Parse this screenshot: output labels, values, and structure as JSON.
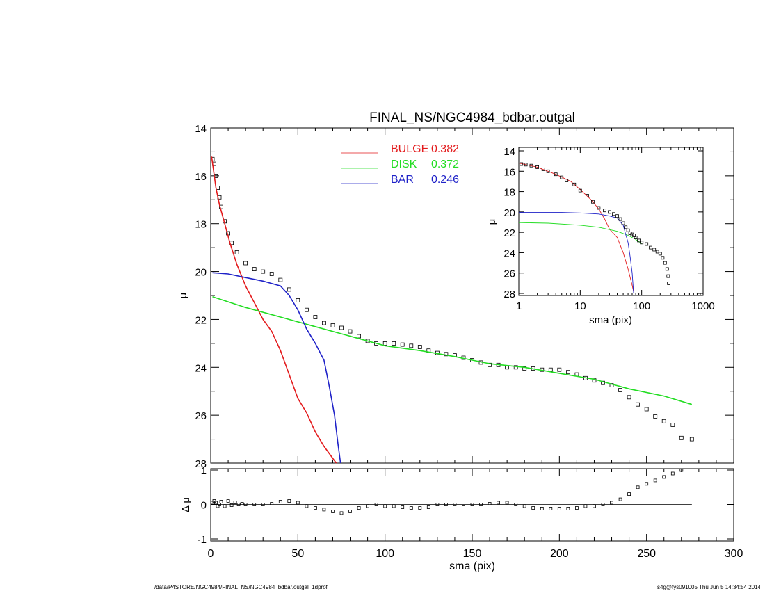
{
  "chart_data": [
    {
      "type": "scatter",
      "panel": "main",
      "title": "FINAL_NS/NGC4984_bdbar.outgal",
      "xlabel": "",
      "ylabel": "μ",
      "xlim": [
        0,
        300
      ],
      "ylim": [
        28,
        14
      ],
      "y_inverted": true,
      "grid": false,
      "legend_position": "top-center",
      "xticks": [
        "0",
        "50",
        "100",
        "150",
        "200",
        "250",
        "300"
      ],
      "yticks": [
        "14",
        "16",
        "18",
        "20",
        "22",
        "24",
        "26",
        "28"
      ],
      "legend": [
        {
          "name": "BULGE",
          "value": "0.382",
          "color": "#e31a1c"
        },
        {
          "name": "DISK",
          "value": "0.372",
          "color": "#22dd22"
        },
        {
          "name": "BAR",
          "value": "0.246",
          "color": "#1f22c8"
        }
      ],
      "observed": {
        "x": [
          1,
          2,
          3,
          4,
          5,
          6,
          8,
          10,
          12,
          15,
          20,
          25,
          30,
          35,
          40,
          45,
          50,
          55,
          60,
          65,
          70,
          75,
          80,
          85,
          90,
          95,
          100,
          105,
          110,
          115,
          120,
          125,
          130,
          135,
          140,
          145,
          150,
          155,
          160,
          165,
          170,
          175,
          180,
          185,
          190,
          195,
          200,
          205,
          210,
          215,
          220,
          225,
          230,
          235,
          240,
          245,
          250,
          255,
          260,
          265,
          270,
          276
        ],
        "y": [
          15.3,
          15.5,
          16.0,
          16.5,
          16.9,
          17.3,
          17.9,
          18.4,
          18.8,
          19.2,
          19.65,
          19.9,
          20.0,
          20.1,
          20.35,
          20.75,
          21.2,
          21.6,
          21.9,
          22.15,
          22.25,
          22.35,
          22.5,
          22.7,
          22.9,
          23.0,
          23.0,
          23.0,
          23.05,
          23.1,
          23.15,
          23.3,
          23.4,
          23.45,
          23.5,
          23.6,
          23.7,
          23.8,
          23.9,
          23.9,
          24.0,
          24.0,
          24.05,
          24.05,
          24.1,
          24.1,
          24.1,
          24.2,
          24.3,
          24.45,
          24.55,
          24.65,
          24.75,
          24.95,
          25.25,
          25.55,
          25.75,
          26.05,
          26.25,
          26.4,
          26.95,
          27.0
        ]
      },
      "series": [
        {
          "name": "BULGE",
          "color": "#e31a1c",
          "x": [
            0.5,
            3,
            5,
            8,
            11,
            15,
            20,
            25,
            30,
            35,
            40,
            45,
            50,
            55,
            60,
            65,
            70,
            72
          ],
          "y": [
            15.2,
            16.5,
            17.2,
            18.0,
            18.8,
            19.7,
            20.6,
            21.3,
            22.0,
            22.5,
            23.3,
            24.3,
            25.3,
            25.9,
            26.7,
            27.3,
            27.8,
            28.0
          ]
        },
        {
          "name": "DISK",
          "color": "#22dd22",
          "x": [
            1,
            20,
            40,
            60,
            80,
            100,
            120,
            140,
            160,
            180,
            200,
            220,
            240,
            260,
            276
          ],
          "y": [
            21.05,
            21.5,
            21.9,
            22.3,
            22.7,
            23.1,
            23.3,
            23.55,
            23.85,
            24.0,
            24.25,
            24.5,
            24.9,
            25.2,
            25.55
          ]
        },
        {
          "name": "BAR",
          "color": "#1f22c8",
          "x": [
            1,
            10,
            20,
            30,
            40,
            45,
            50,
            55,
            60,
            65,
            68,
            71,
            73,
            74.5
          ],
          "y": [
            20.05,
            20.1,
            20.25,
            20.4,
            20.6,
            21.0,
            21.6,
            22.4,
            23.0,
            23.7,
            24.8,
            26.0,
            27.2,
            28.0
          ]
        }
      ]
    },
    {
      "type": "scatter",
      "panel": "residual",
      "xlabel": "sma (pix)",
      "ylabel": "Δ μ",
      "xlim": [
        0,
        300
      ],
      "ylim": [
        -1,
        1
      ],
      "xticks": [
        "0",
        "50",
        "100",
        "150",
        "200",
        "250",
        "300"
      ],
      "yticks": [
        "1",
        "0",
        "-1"
      ],
      "zero_line": true,
      "x": [
        1,
        2,
        3,
        4,
        5,
        6,
        8,
        10,
        12,
        14,
        16,
        18,
        20,
        25,
        30,
        35,
        40,
        45,
        50,
        55,
        60,
        65,
        70,
        75,
        80,
        85,
        90,
        95,
        100,
        105,
        110,
        115,
        120,
        125,
        130,
        135,
        140,
        145,
        150,
        155,
        160,
        165,
        170,
        175,
        180,
        185,
        190,
        195,
        200,
        205,
        210,
        215,
        220,
        225,
        230,
        235,
        240,
        245,
        250,
        255,
        260,
        265,
        270
      ],
      "y": [
        0.05,
        0.1,
        0.05,
        -0.05,
        0.0,
        0.08,
        -0.05,
        0.1,
        -0.02,
        0.06,
        0.0,
        0.02,
        0.0,
        0.0,
        0.0,
        0.02,
        0.08,
        0.1,
        0.05,
        -0.05,
        -0.1,
        -0.15,
        -0.2,
        -0.25,
        -0.2,
        -0.1,
        -0.05,
        0.0,
        -0.05,
        -0.05,
        -0.08,
        -0.1,
        -0.1,
        -0.08,
        0.0,
        0.0,
        0.0,
        0.0,
        0.0,
        0.0,
        0.02,
        0.05,
        0.05,
        0.0,
        -0.05,
        -0.1,
        -0.12,
        -0.12,
        -0.12,
        -0.12,
        -0.1,
        -0.05,
        -0.05,
        0.0,
        0.05,
        0.15,
        0.3,
        0.5,
        0.6,
        0.7,
        0.8,
        0.9,
        1.0
      ]
    },
    {
      "type": "scatter",
      "panel": "inset",
      "xlabel": "sma (pix)",
      "ylabel": "μ",
      "xscale": "log",
      "xlim": [
        1,
        1000
      ],
      "ylim": [
        28,
        14
      ],
      "y_inverted": true,
      "xticks": [
        "1",
        "10",
        "100",
        "1000"
      ],
      "yticks": [
        "14",
        "16",
        "18",
        "20",
        "22",
        "24",
        "26",
        "28"
      ],
      "observed": {
        "x": [
          1.1,
          1.3,
          1.6,
          2,
          2.5,
          3,
          4,
          5,
          6,
          8,
          10,
          13,
          16,
          20,
          25,
          30,
          35,
          40,
          45,
          50,
          55,
          60,
          65,
          70,
          75,
          80,
          90,
          100,
          120,
          140,
          160,
          180,
          200,
          220,
          240,
          260,
          270,
          276
        ],
        "y": [
          15.3,
          15.35,
          15.45,
          15.6,
          15.8,
          16.0,
          16.3,
          16.6,
          16.9,
          17.3,
          17.9,
          18.4,
          19.0,
          19.6,
          19.85,
          20.0,
          20.2,
          20.4,
          20.7,
          21.1,
          21.5,
          21.8,
          22.1,
          22.2,
          22.3,
          22.5,
          22.8,
          23.0,
          23.15,
          23.5,
          23.7,
          23.9,
          24.1,
          24.5,
          25.0,
          25.6,
          26.3,
          27.0
        ]
      },
      "series": [
        {
          "name": "BULGE",
          "color": "#e31a1c",
          "x": [
            1,
            2,
            4,
            7,
            10,
            15,
            20,
            25,
            30,
            40,
            50,
            60,
            70,
            75
          ],
          "y": [
            15.2,
            15.6,
            16.3,
            17.0,
            17.8,
            18.8,
            19.7,
            20.7,
            21.7,
            22.5,
            24.0,
            25.6,
            27.2,
            28.0
          ]
        },
        {
          "name": "DISK",
          "color": "#22dd22",
          "x": [
            1,
            3,
            10,
            20,
            40,
            60,
            80,
            100
          ],
          "y": [
            21.05,
            21.1,
            21.3,
            21.5,
            21.9,
            22.3,
            22.7,
            23.1
          ]
        },
        {
          "name": "BAR",
          "color": "#1f22c8",
          "x": [
            1,
            5,
            10,
            20,
            30,
            40,
            50,
            55,
            60,
            65,
            70,
            74
          ],
          "y": [
            20.05,
            20.05,
            20.1,
            20.2,
            20.4,
            20.6,
            21.3,
            22.2,
            23.0,
            24.4,
            26.0,
            28.0
          ]
        }
      ]
    }
  ],
  "footer": {
    "left": "/data/P4STORE/NGC4984/FINAL_NS/NGC4984_bdbar.outgal_1dprof",
    "right": "s4g@fys091005  Thu Jun  5 14:34:54 2014"
  }
}
